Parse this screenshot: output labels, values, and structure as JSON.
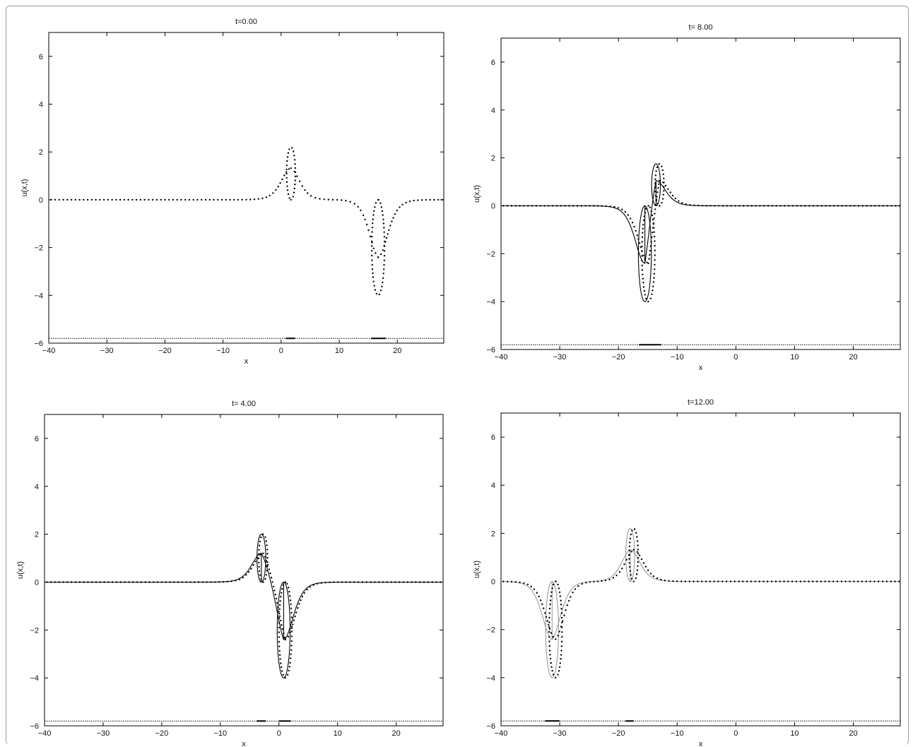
{
  "chart_data": [
    {
      "type": "scatter",
      "title": "t=0.00",
      "xlabel": "x",
      "ylabel": "u(x,t)",
      "xlim": [
        -40,
        28
      ],
      "ylim": [
        -6,
        7
      ],
      "xticks": [
        -40,
        -30,
        -20,
        -10,
        0,
        10,
        20
      ],
      "yticks": [
        -6,
        -4,
        -2,
        0,
        2,
        4,
        6
      ],
      "solitons": [
        {
          "center": 1.7,
          "amplitude": 2.2,
          "orientation": "up"
        },
        {
          "center": 16.7,
          "amplitude": 4.0,
          "orientation": "down"
        }
      ],
      "series": [
        {
          "style": "dotted",
          "color": "#000000",
          "kind": "numerical"
        }
      ],
      "bottom_line": {
        "y": -5.8,
        "marks": [
          [
            0.8,
            2.4
          ],
          [
            15.5,
            18.0
          ]
        ]
      }
    },
    {
      "type": "line",
      "title": "t= 8.00",
      "xlabel": "x",
      "ylabel": "u(x,t)",
      "xlim": [
        -40,
        28
      ],
      "ylim": [
        -6,
        7
      ],
      "xticks": [
        -40,
        -30,
        -20,
        -10,
        0,
        10,
        20
      ],
      "yticks": [
        -6,
        -4,
        -2,
        0,
        2,
        4,
        6
      ],
      "solitons": [
        {
          "center": -13.6,
          "amplitude": 1.75,
          "orientation": "up"
        },
        {
          "center": -15.5,
          "amplitude": 4.0,
          "orientation": "down"
        }
      ],
      "series": [
        {
          "style": "solid",
          "color": "#000000",
          "kind": "exact"
        },
        {
          "style": "dotted",
          "color": "#000000",
          "kind": "numerical",
          "offset": 0.6
        }
      ],
      "bottom_line": {
        "y": -5.8,
        "marks": [
          [
            -16.5,
            -12.7
          ]
        ]
      }
    },
    {
      "type": "line",
      "title": "t= 4.00",
      "xlabel": "x",
      "ylabel": "u(x,t)",
      "xlim": [
        -40,
        28
      ],
      "ylim": [
        -6,
        7
      ],
      "xticks": [
        -40,
        -30,
        -20,
        -10,
        0,
        10,
        20
      ],
      "yticks": [
        -6,
        -4,
        -2,
        0,
        2,
        4,
        6
      ],
      "solitons": [
        {
          "center": -3.0,
          "amplitude": 2.0,
          "orientation": "up"
        },
        {
          "center": 0.8,
          "amplitude": 4.0,
          "orientation": "down"
        }
      ],
      "series": [
        {
          "style": "solid",
          "color": "#000000",
          "kind": "exact"
        },
        {
          "style": "dotted",
          "color": "#000000",
          "kind": "numerical",
          "offset": 0.3
        }
      ],
      "bottom_line": {
        "y": -5.8,
        "marks": [
          [
            -3.8,
            -2.2
          ],
          [
            0.0,
            2.0
          ]
        ]
      }
    },
    {
      "type": "line",
      "title": "t=12.00",
      "xlabel": "x",
      "ylabel": "u(x,t)",
      "xlim": [
        -40,
        28
      ],
      "ylim": [
        -6,
        7
      ],
      "xticks": [
        -40,
        -30,
        -20,
        -10,
        0,
        10,
        20
      ],
      "yticks": [
        -6,
        -4,
        -2,
        0,
        2,
        4,
        6
      ],
      "solitons": [
        {
          "center": -18.0,
          "amplitude": 2.2,
          "orientation": "up"
        },
        {
          "center": -31.3,
          "amplitude": 4.0,
          "orientation": "down"
        }
      ],
      "series": [
        {
          "style": "solid",
          "color": "#9a9a9a",
          "kind": "exact"
        },
        {
          "style": "dotted",
          "color": "#000000",
          "kind": "numerical",
          "offset": 0.6
        }
      ],
      "bottom_line": {
        "y": -5.8,
        "marks": [
          [
            -32.5,
            -30.0
          ],
          [
            -18.8,
            -17.4
          ]
        ]
      }
    }
  ]
}
